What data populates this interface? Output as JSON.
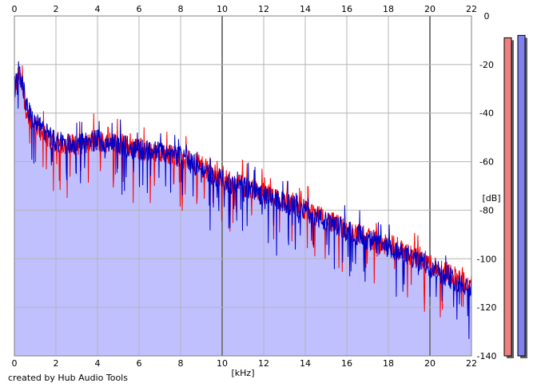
{
  "app": {
    "credit": "created by Hub Audio Tools"
  },
  "colors": {
    "background": "#ffffff",
    "plot_background": "#ffffff",
    "grid_minor": "#b4b4b4",
    "grid_major": "#7a7a7a",
    "fill": "#c0c0ff",
    "left_channel": "#ff0000",
    "right_channel": "#0000c8",
    "meter_left": "#f08080",
    "meter_right": "#8080f0"
  },
  "chart_data": {
    "type": "line",
    "title": "",
    "xlabel": "[kHz]",
    "ylabel": "[dB]",
    "xlim": [
      0,
      22
    ],
    "ylim": [
      -140,
      0
    ],
    "x_ticks": [
      "0",
      "2",
      "4",
      "6",
      "8",
      "10",
      "12",
      "14",
      "16",
      "18",
      "20",
      "22"
    ],
    "y_ticks": [
      "0",
      "-20",
      "-40",
      "-60",
      "-80",
      "-100",
      "-120",
      "-140"
    ],
    "grid": true,
    "major_grid_x": [
      10,
      20
    ],
    "filled_area": true,
    "series": [
      {
        "color": "red",
        "x": [
          0,
          0.2,
          0.4,
          0.6,
          1.0,
          1.5,
          2.0,
          3.0,
          4.0,
          5.0,
          6.0,
          7.0,
          8.0,
          9.0,
          10.0,
          11.0,
          12.0,
          13.0,
          14.0,
          15.0,
          16.0,
          17.0,
          18.0,
          19.0,
          20.0,
          21.0,
          22.0
        ],
        "values": [
          -32,
          -24,
          -30,
          -40,
          -44,
          -50,
          -52,
          -53,
          -52,
          -52,
          -55,
          -56,
          -58,
          -62,
          -67,
          -70,
          -73,
          -76,
          -80,
          -84,
          -88,
          -91,
          -95,
          -98,
          -102,
          -106,
          -111
        ]
      },
      {
        "color": "blue",
        "x": [
          0,
          0.2,
          0.4,
          0.6,
          1.0,
          1.5,
          2.0,
          3.0,
          4.0,
          5.0,
          6.0,
          7.0,
          8.0,
          9.0,
          10.0,
          11.0,
          12.0,
          13.0,
          14.0,
          15.0,
          16.0,
          17.0,
          18.0,
          19.0,
          20.0,
          21.0,
          22.0
        ],
        "values": [
          -30,
          -22,
          -28,
          -38,
          -44,
          -48,
          -52,
          -53,
          -51,
          -53,
          -55,
          -56,
          -58,
          -63,
          -68,
          -70,
          -74,
          -77,
          -80,
          -85,
          -88,
          -92,
          -96,
          -99,
          -103,
          -108,
          -112
        ]
      }
    ],
    "meters": [
      {
        "channel": "left",
        "level_db": -9
      },
      {
        "channel": "right",
        "level_db": -8
      }
    ]
  }
}
